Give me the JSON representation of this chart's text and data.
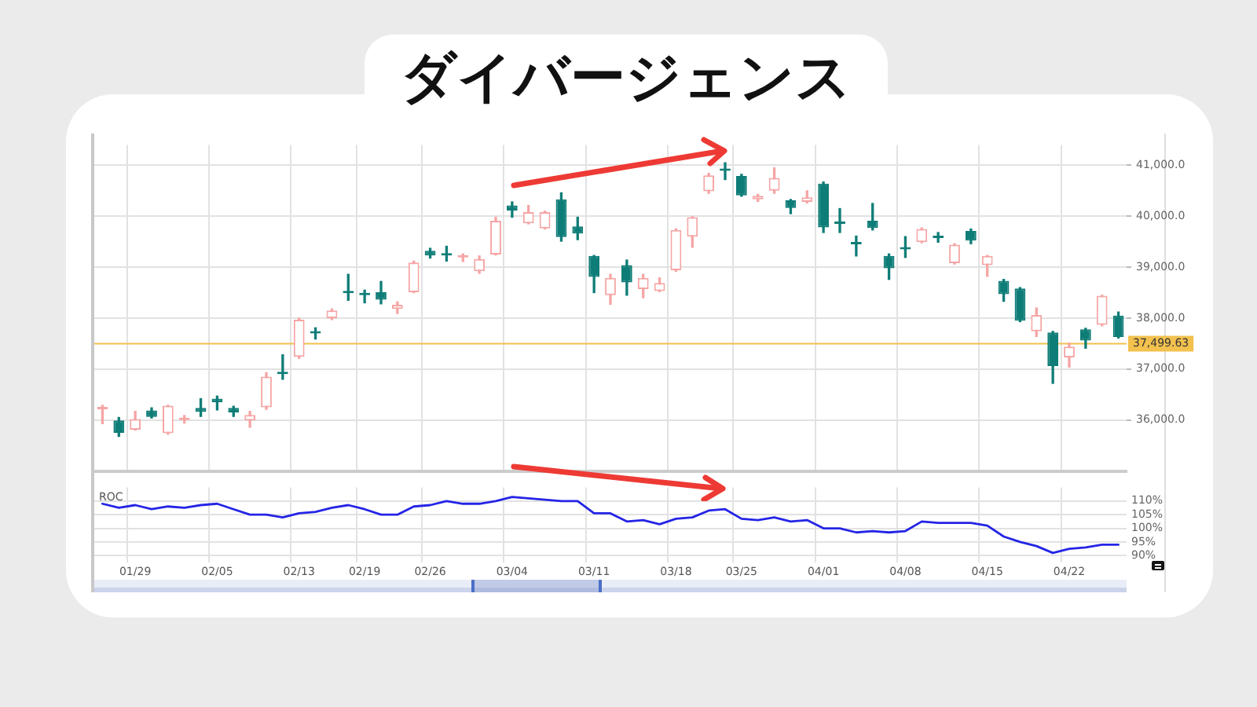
{
  "chart_data": [
    {
      "type": "candlestick",
      "title": "ダイバージェンス",
      "categories": [
        null,
        null,
        null,
        null,
        null,
        null,
        null,
        null,
        null,
        null,
        null,
        null,
        null,
        null,
        null,
        null,
        null,
        null,
        null,
        null,
        null,
        null,
        null,
        null,
        null,
        null,
        null,
        null,
        null,
        null,
        null,
        null,
        null,
        null,
        null,
        null,
        null,
        null,
        null,
        null,
        null,
        null,
        null,
        null,
        null,
        null,
        null,
        null,
        null,
        null,
        null,
        null,
        null,
        null,
        null,
        null,
        null,
        null,
        null,
        null,
        null,
        null,
        null
      ],
      "ohlc": [
        [
          36210,
          36290,
          35930,
          36230
        ],
        [
          35990,
          36050,
          35680,
          35750
        ],
        [
          35810,
          36170,
          35800,
          36020
        ],
        [
          36190,
          36240,
          36040,
          36060
        ],
        [
          35740,
          36290,
          35720,
          36280
        ],
        [
          36000,
          36090,
          35940,
          36020
        ],
        [
          36240,
          36420,
          36070,
          36160
        ],
        [
          36420,
          36470,
          36200,
          36350
        ],
        [
          36240,
          36270,
          36070,
          36150
        ],
        [
          35990,
          36170,
          35860,
          36100
        ],
        [
          36250,
          36930,
          36210,
          36850
        ],
        [
          36910,
          37280,
          36800,
          36900
        ],
        [
          37240,
          38000,
          37210,
          37970
        ],
        [
          37720,
          37810,
          37590,
          37700
        ],
        [
          38000,
          38180,
          37970,
          38150
        ],
        [
          38520,
          38860,
          38350,
          38490
        ],
        [
          38470,
          38550,
          38300,
          38450
        ],
        [
          38510,
          38720,
          38280,
          38360
        ],
        [
          38180,
          38320,
          38090,
          38260
        ],
        [
          38510,
          39120,
          38500,
          39090
        ],
        [
          39320,
          39370,
          39180,
          39230
        ],
        [
          39250,
          39410,
          39120,
          39230
        ],
        [
          39190,
          39260,
          39110,
          39210
        ],
        [
          38920,
          39220,
          38880,
          39160
        ],
        [
          39250,
          39980,
          39240,
          39910
        ],
        [
          40210,
          40280,
          39980,
          40110
        ],
        [
          39860,
          40210,
          39850,
          40080
        ],
        [
          39760,
          40100,
          39750,
          40080
        ],
        [
          40330,
          40460,
          39510,
          39590
        ],
        [
          39800,
          39980,
          39540,
          39660
        ],
        [
          39220,
          39230,
          38500,
          38810
        ],
        [
          38450,
          38860,
          38270,
          38790
        ],
        [
          39040,
          39140,
          38450,
          38700
        ],
        [
          38570,
          38860,
          38400,
          38790
        ],
        [
          38530,
          38790,
          38520,
          38690
        ],
        [
          38940,
          39750,
          38920,
          39730
        ],
        [
          39600,
          39990,
          39390,
          39980
        ],
        [
          40490,
          40840,
          40450,
          40800
        ],
        [
          40910,
          41050,
          40720,
          40890
        ],
        [
          40790,
          40820,
          40390,
          40410
        ],
        [
          40330,
          40430,
          40290,
          40400
        ],
        [
          40500,
          40950,
          40450,
          40750
        ],
        [
          40310,
          40330,
          40050,
          40160
        ],
        [
          40280,
          40500,
          40260,
          40370
        ],
        [
          40640,
          40670,
          39680,
          39780
        ],
        [
          39880,
          40150,
          39680,
          39850
        ],
        [
          39490,
          39610,
          39220,
          39450
        ],
        [
          39910,
          40250,
          39730,
          39770
        ],
        [
          39220,
          39260,
          38760,
          38980
        ],
        [
          39380,
          39600,
          39190,
          39350
        ],
        [
          39490,
          39770,
          39480,
          39750
        ],
        [
          39590,
          39680,
          39490,
          39570
        ],
        [
          39080,
          39460,
          39060,
          39440
        ],
        [
          39710,
          39750,
          39460,
          39520
        ],
        [
          39040,
          39230,
          38820,
          39220
        ],
        [
          38730,
          38760,
          38330,
          38470
        ],
        [
          38580,
          38600,
          37930,
          37950
        ],
        [
          37740,
          38200,
          37640,
          38060
        ],
        [
          37720,
          37740,
          36720,
          37060
        ],
        [
          37230,
          37510,
          37040,
          37440
        ],
        [
          37780,
          37800,
          37410,
          37560
        ],
        [
          37870,
          38450,
          37850,
          38440
        ],
        [
          38050,
          38120,
          37610,
          37630
        ]
      ],
      "colors": [
        "#f6a5a5",
        "#0f7d77",
        "#f6a5a5",
        "#0f7d77",
        "#f6a5a5",
        "#f6a5a5",
        "#0f7d77",
        "#0f7d77",
        "#0f7d77",
        "#f6a5a5",
        "#f6a5a5",
        "#0f7d77",
        "#f6a5a5",
        "#0f7d77",
        "#f6a5a5",
        "#0f7d77",
        "#0f7d77",
        "#0f7d77",
        "#f6a5a5",
        "#f6a5a5",
        "#0f7d77",
        "#0f7d77",
        "#f6a5a5",
        "#f6a5a5",
        "#f6a5a5",
        "#0f7d77",
        "#f6a5a5",
        "#f6a5a5",
        "#0f7d77",
        "#0f7d77",
        "#0f7d77",
        "#f6a5a5",
        "#0f7d77",
        "#f6a5a5",
        "#f6a5a5",
        "#f6a5a5",
        "#f6a5a5",
        "#f6a5a5",
        "#0f7d77",
        "#0f7d77",
        "#f6a5a5",
        "#f6a5a5",
        "#0f7d77",
        "#f6a5a5",
        "#0f7d77",
        "#0f7d77",
        "#0f7d77",
        "#0f7d77",
        "#0f7d77",
        "#0f7d77",
        "#f6a5a5",
        "#0f7d77",
        "#f6a5a5",
        "#0f7d77",
        "#f6a5a5",
        "#0f7d77",
        "#0f7d77",
        "#f6a5a5",
        "#0f7d77",
        "#f6a5a5",
        "#0f7d77",
        "#f6a5a5",
        "#0f7d77"
      ],
      "ylim": [
        35000,
        41400
      ],
      "yticks": [
        {
          "value": 36000,
          "label": "36,000.0"
        },
        {
          "value": 37000,
          "label": "37,000.0"
        },
        {
          "value": 38000,
          "label": "38,000.0"
        },
        {
          "value": 39000,
          "label": "39,000.0"
        },
        {
          "value": 40000,
          "label": "40,000.0"
        },
        {
          "value": 41000,
          "label": "41,000.0"
        }
      ],
      "grid": true,
      "ref_lines": [
        {
          "axis": "y",
          "value": 37499.63,
          "label": "37,499.63",
          "color": "#f2c14e"
        }
      ]
    },
    {
      "type": "line",
      "title": "ROC",
      "categories": [
        null,
        null,
        "01/29",
        null,
        null,
        null,
        null,
        "02/05",
        null,
        null,
        null,
        null,
        "02/13",
        null,
        null,
        null,
        "02/19",
        null,
        null,
        null,
        "02/26",
        null,
        null,
        null,
        null,
        "03/04",
        null,
        null,
        null,
        null,
        "03/11",
        null,
        null,
        null,
        null,
        "03/18",
        null,
        null,
        null,
        "03/25",
        null,
        null,
        null,
        null,
        "04/01",
        null,
        null,
        null,
        null,
        "04/08",
        null,
        null,
        null,
        null,
        "04/15",
        null,
        null,
        null,
        null,
        "04/22",
        null,
        null,
        null
      ],
      "series": [
        {
          "color": "#2424e6",
          "values": [
            109,
            107.5,
            108.5,
            107,
            108,
            107.5,
            108.5,
            109,
            107,
            105,
            105,
            104,
            105.5,
            106,
            107.5,
            108.5,
            107,
            105,
            105,
            108,
            108.5,
            110,
            109,
            109,
            110,
            111.5,
            111,
            110.5,
            110,
            110,
            105.5,
            105.5,
            102.5,
            103,
            101.5,
            103.5,
            104,
            106.5,
            107,
            103.5,
            103,
            104,
            102.5,
            103,
            100,
            100,
            98.5,
            99,
            98.5,
            99,
            102.5,
            102,
            102,
            102,
            101,
            97,
            95,
            93.5,
            91,
            92.5,
            93,
            94,
            94
          ]
        }
      ],
      "ylim": [
        87.5,
        115
      ],
      "yticks": [
        {
          "value": 90,
          "label": "90%"
        },
        {
          "value": 95,
          "label": "95%"
        },
        {
          "value": 100,
          "label": "100%"
        },
        {
          "value": 105,
          "label": "105%"
        },
        {
          "value": 110,
          "label": "110%"
        }
      ],
      "grid": true,
      "marker": "none"
    }
  ]
}
